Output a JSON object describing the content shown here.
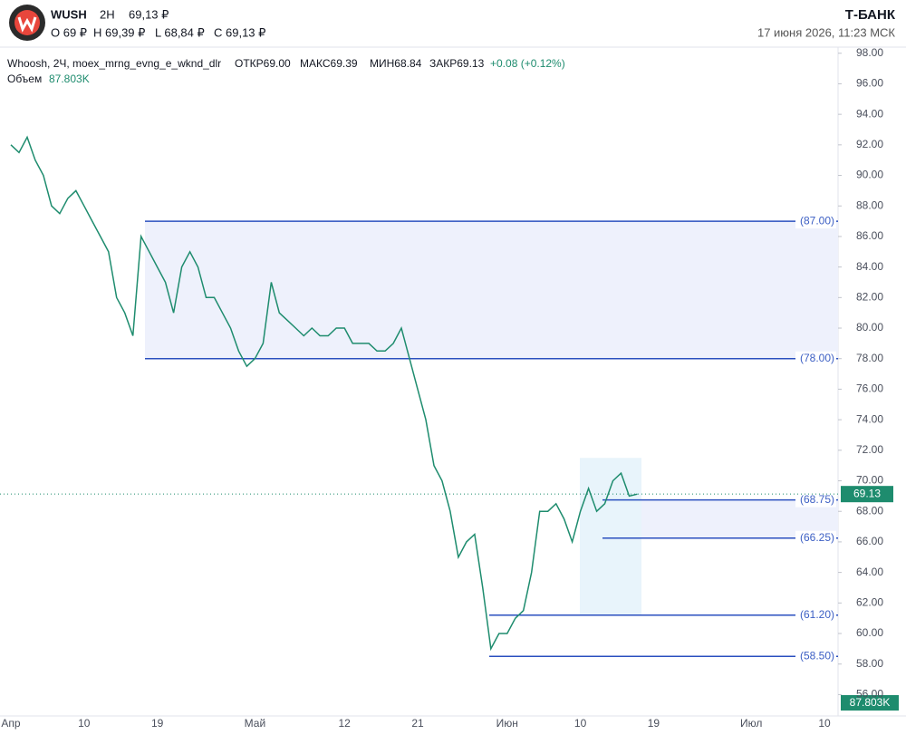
{
  "header": {
    "ticker": "WUSH",
    "interval": "2H",
    "price": "69,13 ₽",
    "open": "O 69 ₽",
    "high": "H 69,39 ₽",
    "low": "L 68,84 ₽",
    "close": "C 69,13 ₽",
    "brand": "Т-БАНК",
    "datetime": "17 июня 2026, 11:23 МСК"
  },
  "legend": {
    "symbol": "Whoosh, 2Ч, moex_mrng_evng_e_wknd_dlr",
    "open": "ОТКР69.00",
    "high": "МАКС69.39",
    "low": "МИН68.84",
    "close": "ЗАКР69.13",
    "change": "+0.08 (+0.12%)",
    "volume_label": "Объем",
    "volume": "87.803K"
  },
  "chart_data": {
    "type": "line",
    "categories": [
      "Апр",
      null,
      null,
      null,
      null,
      null,
      null,
      null,
      null,
      "10",
      null,
      null,
      null,
      null,
      null,
      null,
      null,
      null,
      "19",
      null,
      null,
      null,
      null,
      null,
      null,
      null,
      null,
      null,
      null,
      null,
      "Май",
      null,
      null,
      null,
      null,
      null,
      null,
      null,
      null,
      null,
      null,
      "12",
      null,
      null,
      null,
      null,
      null,
      null,
      null,
      null,
      "21",
      null,
      null,
      null,
      null,
      null,
      null,
      null,
      null,
      null,
      null,
      "Июн",
      null,
      null,
      null,
      null,
      null,
      null,
      null,
      null,
      "10",
      null,
      null,
      null,
      null,
      null,
      null,
      null,
      null,
      "19",
      null,
      null,
      null,
      null,
      null,
      null,
      null,
      null,
      null,
      null,
      null,
      "Июл",
      null,
      null,
      null,
      null,
      null,
      null,
      null,
      null,
      "10"
    ],
    "series": [
      {
        "name": "Whoosh",
        "color": "#1e8c6e",
        "values": [
          92,
          91.5,
          92.5,
          91,
          90,
          88,
          87.5,
          88.5,
          89,
          88,
          87,
          86,
          85,
          82,
          81,
          79.5,
          86,
          85,
          84,
          83,
          81,
          84,
          85,
          84,
          82,
          82,
          81,
          80,
          78.5,
          77.5,
          78,
          79,
          83,
          81,
          80.5,
          80,
          79.5,
          80,
          79.5,
          79.5,
          80,
          80,
          79,
          79,
          79,
          78.5,
          78.5,
          79,
          80,
          78,
          76,
          74,
          71,
          70,
          68,
          65,
          66,
          66.5,
          63,
          59,
          60,
          60,
          61,
          61.5,
          64,
          68,
          68,
          68.5,
          67.5,
          66,
          68,
          69.5,
          68,
          68.5,
          70,
          70.5,
          69,
          69.13,
          null,
          null,
          null,
          null,
          null,
          null,
          null,
          null,
          null,
          null,
          null,
          null,
          null,
          null,
          null,
          null,
          null,
          null,
          null,
          null,
          null,
          null,
          null
        ]
      }
    ],
    "ylim": [
      54.6,
      98.4
    ],
    "yticks": [
      {
        "value": 56,
        "label": "56.00"
      },
      {
        "value": 58,
        "label": "58.00"
      },
      {
        "value": 60,
        "label": "60.00"
      },
      {
        "value": 62,
        "label": "62.00"
      },
      {
        "value": 64,
        "label": "64.00"
      },
      {
        "value": 66,
        "label": "66.00"
      },
      {
        "value": 68,
        "label": "68.00"
      },
      {
        "value": 70,
        "label": "70.00"
      },
      {
        "value": 72,
        "label": "72.00"
      },
      {
        "value": 74,
        "label": "74.00"
      },
      {
        "value": 76,
        "label": "76.00"
      },
      {
        "value": 78,
        "label": "78.00"
      },
      {
        "value": 80,
        "label": "80.00"
      },
      {
        "value": 82,
        "label": "82.00"
      },
      {
        "value": 84,
        "label": "84.00"
      },
      {
        "value": 86,
        "label": "86.00"
      },
      {
        "value": 88,
        "label": "88.00"
      },
      {
        "value": 90,
        "label": "90.00"
      },
      {
        "value": 92,
        "label": "92.00"
      },
      {
        "value": 94,
        "label": "94.00"
      },
      {
        "value": 96,
        "label": "96.00"
      },
      {
        "value": 98,
        "label": "98.00"
      }
    ],
    "levels": [
      {
        "value": 87,
        "label": "(87.00)"
      },
      {
        "value": 78,
        "label": "(78.00)"
      },
      {
        "value": 68.75,
        "label": "(68.75)"
      },
      {
        "value": 66.25,
        "label": "(66.25)"
      },
      {
        "value": 61.2,
        "label": "(61.20)"
      },
      {
        "value": 58.5,
        "label": "(58.50)"
      }
    ],
    "level_color": "#2a4fbf",
    "last_price": {
      "value": 69.13,
      "label": "69.13"
    }
  }
}
